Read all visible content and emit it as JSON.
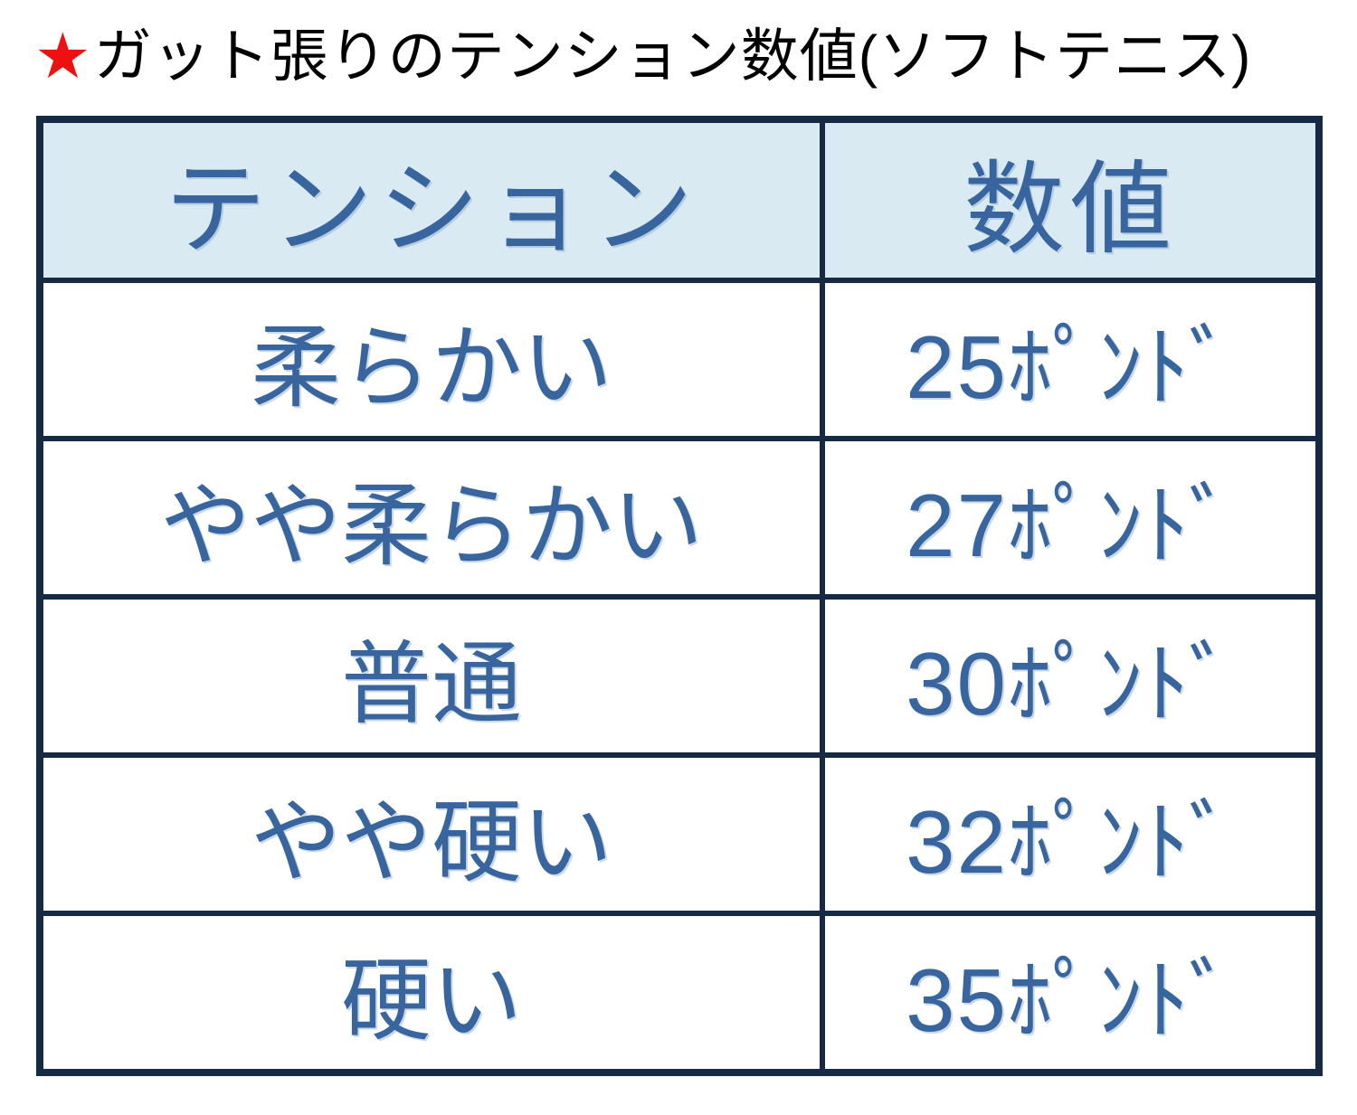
{
  "title": {
    "star": "★",
    "text": "ガット張りのテンション数値(ソフトテニス)"
  },
  "colors": {
    "border_navy": "#172a44",
    "header_bg": "#daeaf2",
    "text_blue": "#38659d",
    "star_red": "#ee1111",
    "title_black": "#000000",
    "page_bg": "#ffffff"
  },
  "table": {
    "headers": {
      "tension": "テンション",
      "value": "数値"
    },
    "rows": [
      {
        "tension": "柔らかい",
        "value": "25ﾎﾟﾝﾄﾞ"
      },
      {
        "tension": "やや柔らかい",
        "value": "27ﾎﾟﾝﾄﾞ"
      },
      {
        "tension": "普通",
        "value": "30ﾎﾟﾝﾄﾞ"
      },
      {
        "tension": "やや硬い",
        "value": "32ﾎﾟﾝﾄﾞ"
      },
      {
        "tension": "硬い",
        "value": "35ﾎﾟﾝﾄﾞ"
      }
    ]
  },
  "chart_data": {
    "type": "table",
    "title": "★ガット張りのテンション数値(ソフトテニス)",
    "columns": [
      "テンション",
      "数値"
    ],
    "rows": [
      [
        "柔らかい",
        "25ﾎﾟﾝﾄﾞ"
      ],
      [
        "やや柔らかい",
        "27ﾎﾟﾝﾄﾞ"
      ],
      [
        "普通",
        "30ﾎﾟﾝﾄﾞ"
      ],
      [
        "やや硬い",
        "32ﾎﾟﾝﾄﾞ"
      ],
      [
        "硬い",
        "35ﾎﾟﾝﾄﾞ"
      ]
    ],
    "values_pounds": [
      25,
      27,
      30,
      32,
      35
    ]
  }
}
